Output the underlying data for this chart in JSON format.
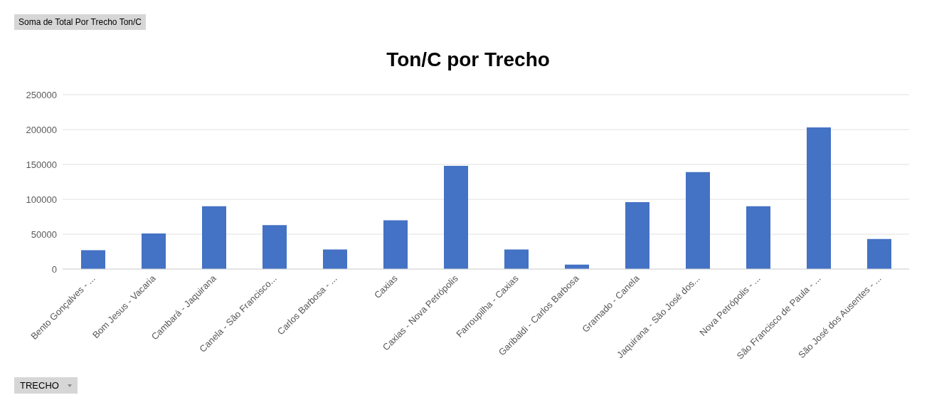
{
  "chart_data": {
    "type": "bar",
    "title": "Ton/C por Trecho",
    "categories": [
      "Bento Gonçalves - ...",
      "Bom Jesus - Vacaria",
      "Cambará - Jaquirana",
      "Canela - São Francisco...",
      "Carlos Barbosa - ...",
      "Caxias",
      "Caxias - Nova Petrópolis",
      "Farroupilha - Caxias",
      "Garibaldi - Carlos Barbosa",
      "Gramado - Canela",
      "Jaquirana - São José dos...",
      "Nova Petrópolis - ...",
      "São Francisco de Paula - ...",
      "São José dos Ausentes - ..."
    ],
    "values": [
      27000,
      51000,
      90000,
      63000,
      28000,
      70000,
      148000,
      28000,
      6500,
      96000,
      139000,
      90000,
      203000,
      43000
    ],
    "color": "#4472c4",
    "ylim": [
      0,
      250000
    ],
    "yticks": [
      0,
      50000,
      100000,
      150000,
      200000,
      250000
    ],
    "grid": "y",
    "annotations": [
      "Soma de Total Por Trecho Ton/C",
      "TRECHO"
    ]
  }
}
